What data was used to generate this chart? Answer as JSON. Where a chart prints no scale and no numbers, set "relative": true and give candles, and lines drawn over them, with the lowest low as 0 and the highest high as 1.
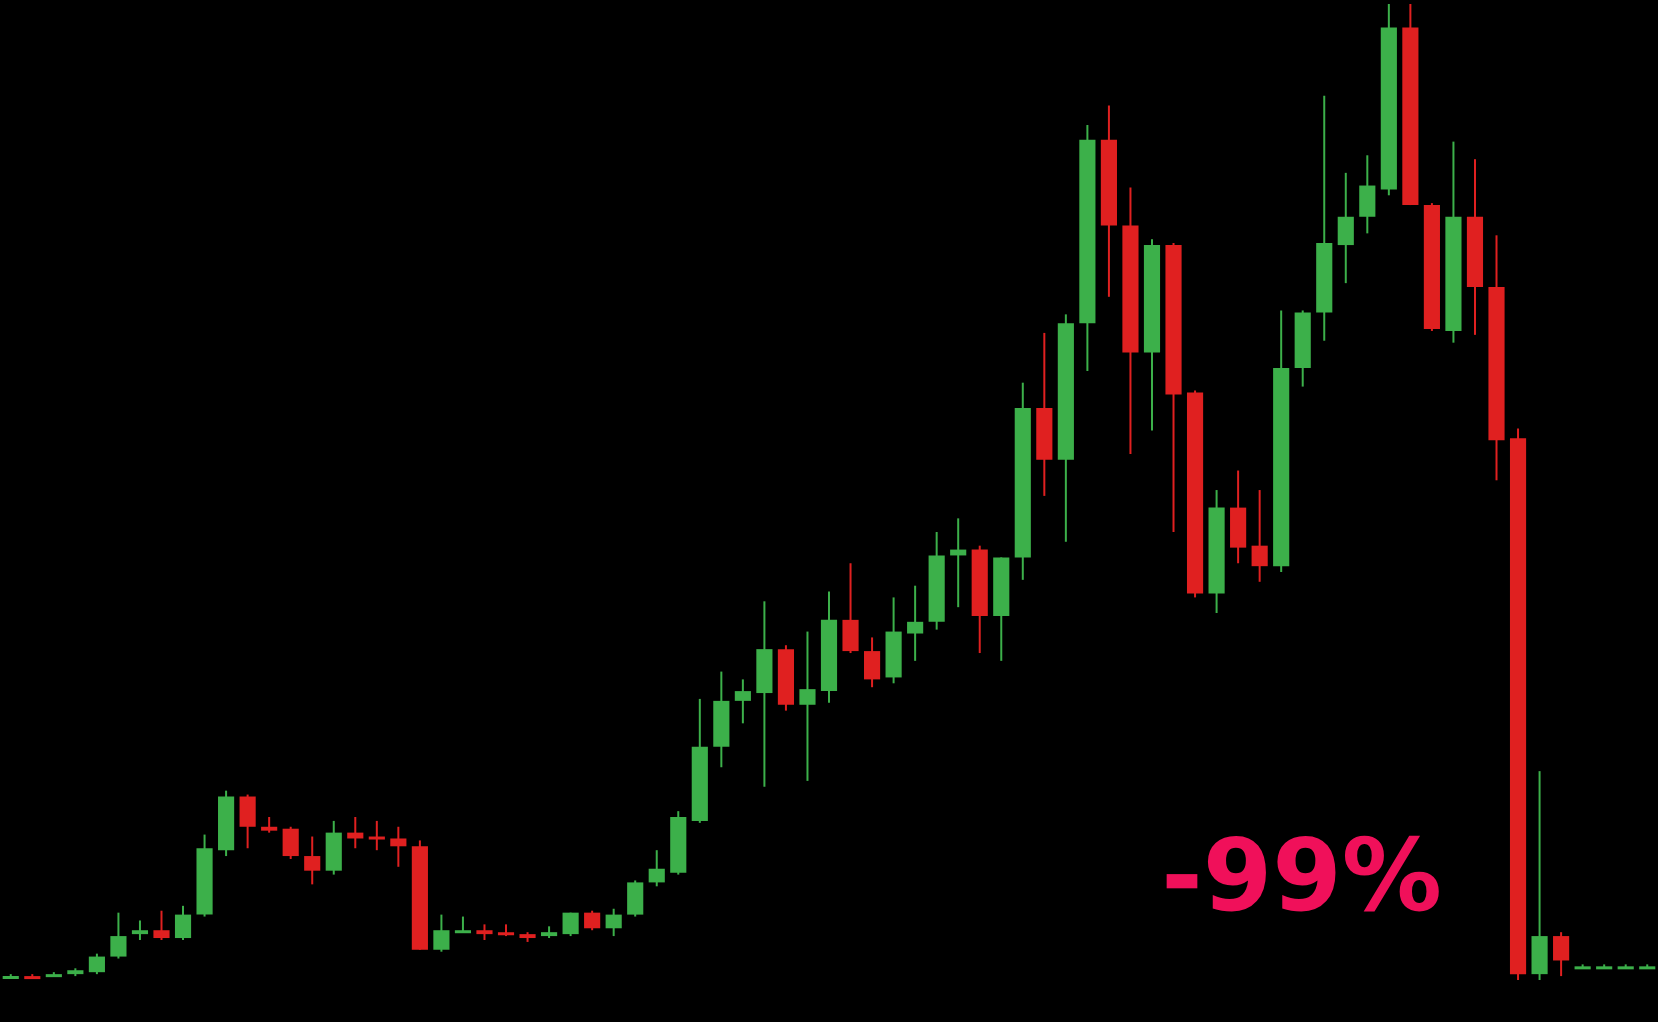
{
  "chart_data": {
    "type": "candlestick",
    "relative": true,
    "annotations": [
      "-99%"
    ],
    "categories": [
      null,
      null,
      null,
      null,
      null,
      null,
      null,
      null,
      null,
      null,
      null,
      null,
      null,
      null,
      null,
      null,
      null,
      null,
      null,
      null,
      null,
      null,
      null,
      null,
      null,
      null,
      null,
      null,
      null,
      null,
      null,
      null,
      null,
      null,
      null,
      null,
      null,
      null,
      null,
      null,
      null,
      null,
      null,
      null,
      null,
      null,
      null,
      null,
      null,
      null,
      null,
      null,
      null,
      null,
      null,
      null,
      null,
      null,
      null,
      null,
      null,
      null,
      null,
      null,
      null,
      null,
      null,
      null,
      null,
      null,
      null,
      null,
      null,
      null,
      null,
      null,
      null
    ],
    "ohlc": [
      [
        0.002,
        0.006,
        0.002,
        0.004
      ],
      [
        0.004,
        0.006,
        0.002,
        0.002
      ],
      [
        0.006,
        0.008,
        0.004,
        0.006
      ],
      [
        0.006,
        0.012,
        0.004,
        0.01
      ],
      [
        0.008,
        0.027,
        0.006,
        0.024
      ],
      [
        0.024,
        0.069,
        0.022,
        0.045
      ],
      [
        0.047,
        0.061,
        0.041,
        0.051
      ],
      [
        0.051,
        0.071,
        0.041,
        0.043
      ],
      [
        0.043,
        0.076,
        0.041,
        0.067
      ],
      [
        0.067,
        0.149,
        0.065,
        0.135
      ],
      [
        0.133,
        0.194,
        0.127,
        0.188
      ],
      [
        0.188,
        0.19,
        0.135,
        0.157
      ],
      [
        0.157,
        0.167,
        0.151,
        0.153
      ],
      [
        0.155,
        0.157,
        0.124,
        0.127
      ],
      [
        0.127,
        0.147,
        0.098,
        0.112
      ],
      [
        0.112,
        0.163,
        0.108,
        0.151
      ],
      [
        0.151,
        0.167,
        0.135,
        0.145
      ],
      [
        0.147,
        0.163,
        0.133,
        0.145
      ],
      [
        0.145,
        0.157,
        0.116,
        0.137
      ],
      [
        0.137,
        0.143,
        0.031,
        0.031
      ],
      [
        0.031,
        0.067,
        0.029,
        0.051
      ],
      [
        0.05,
        0.065,
        0.049,
        0.051
      ],
      [
        0.051,
        0.057,
        0.041,
        0.047
      ],
      [
        0.049,
        0.057,
        0.045,
        0.047
      ],
      [
        0.047,
        0.049,
        0.039,
        0.043
      ],
      [
        0.045,
        0.055,
        0.043,
        0.049
      ],
      [
        0.047,
        0.069,
        0.045,
        0.069
      ],
      [
        0.069,
        0.071,
        0.051,
        0.053
      ],
      [
        0.053,
        0.073,
        0.045,
        0.067
      ],
      [
        0.067,
        0.102,
        0.065,
        0.1
      ],
      [
        0.1,
        0.133,
        0.096,
        0.114
      ],
      [
        0.11,
        0.173,
        0.108,
        0.167
      ],
      [
        0.163,
        0.288,
        0.161,
        0.239
      ],
      [
        0.239,
        0.316,
        0.218,
        0.286
      ],
      [
        0.286,
        0.308,
        0.263,
        0.296
      ],
      [
        0.294,
        0.388,
        0.198,
        0.339
      ],
      [
        0.339,
        0.343,
        0.276,
        0.282
      ],
      [
        0.282,
        0.357,
        0.204,
        0.298
      ],
      [
        0.296,
        0.398,
        0.284,
        0.369
      ],
      [
        0.369,
        0.427,
        0.335,
        0.337
      ],
      [
        0.337,
        0.351,
        0.3,
        0.308
      ],
      [
        0.31,
        0.392,
        0.304,
        0.357
      ],
      [
        0.355,
        0.404,
        0.327,
        0.367
      ],
      [
        0.367,
        0.459,
        0.359,
        0.435
      ],
      [
        0.435,
        0.473,
        0.382,
        0.441
      ],
      [
        0.441,
        0.445,
        0.335,
        0.373
      ],
      [
        0.373,
        0.433,
        0.327,
        0.433
      ],
      [
        0.433,
        0.612,
        0.41,
        0.586
      ],
      [
        0.586,
        0.663,
        0.496,
        0.533
      ],
      [
        0.533,
        0.682,
        0.449,
        0.673
      ],
      [
        0.673,
        0.876,
        0.624,
        0.861
      ],
      [
        0.861,
        0.896,
        0.7,
        0.773
      ],
      [
        0.773,
        0.812,
        0.539,
        0.643
      ],
      [
        0.643,
        0.759,
        0.563,
        0.753
      ],
      [
        0.753,
        0.755,
        0.459,
        0.6
      ],
      [
        0.602,
        0.604,
        0.392,
        0.396
      ],
      [
        0.396,
        0.502,
        0.376,
        0.484
      ],
      [
        0.484,
        0.522,
        0.427,
        0.443
      ],
      [
        0.445,
        0.502,
        0.408,
        0.424
      ],
      [
        0.424,
        0.686,
        0.418,
        0.627
      ],
      [
        0.627,
        0.686,
        0.608,
        0.684
      ],
      [
        0.684,
        0.906,
        0.655,
        0.755
      ],
      [
        0.753,
        0.827,
        0.714,
        0.782
      ],
      [
        0.782,
        0.845,
        0.765,
        0.814
      ],
      [
        0.81,
        1,
        0.804,
        0.976
      ],
      [
        0.976,
        1,
        0.794,
        0.794
      ],
      [
        0.794,
        0.796,
        0.665,
        0.667
      ],
      [
        0.665,
        0.859,
        0.653,
        0.782
      ],
      [
        0.782,
        0.841,
        0.661,
        0.71
      ],
      [
        0.71,
        0.763,
        0.512,
        0.553
      ],
      [
        0.555,
        0.565,
        0,
        0.006
      ],
      [
        0.006,
        0.214,
        0,
        0.045
      ],
      [
        0.045,
        0.049,
        0.004,
        0.02
      ],
      [
        0.014,
        0.016,
        0.012,
        0.014
      ],
      [
        0.014,
        0.016,
        0.012,
        0.014
      ],
      [
        0.014,
        0.016,
        0.012,
        0.014
      ],
      [
        0.014,
        0.016,
        0.012,
        0.014
      ]
    ],
    "colors": [
      "#3cb04a",
      "#e02020",
      "#3cb04a",
      "#3cb04a",
      "#3cb04a",
      "#3cb04a",
      "#3cb04a",
      "#e02020",
      "#3cb04a",
      "#3cb04a",
      "#3cb04a",
      "#e02020",
      "#e02020",
      "#e02020",
      "#e02020",
      "#3cb04a",
      "#e02020",
      "#e02020",
      "#e02020",
      "#e02020",
      "#3cb04a",
      "#3cb04a",
      "#e02020",
      "#e02020",
      "#e02020",
      "#3cb04a",
      "#3cb04a",
      "#e02020",
      "#3cb04a",
      "#3cb04a",
      "#3cb04a",
      "#3cb04a",
      "#3cb04a",
      "#3cb04a",
      "#3cb04a",
      "#3cb04a",
      "#e02020",
      "#3cb04a",
      "#3cb04a",
      "#e02020",
      "#e02020",
      "#3cb04a",
      "#3cb04a",
      "#3cb04a",
      "#3cb04a",
      "#e02020",
      "#3cb04a",
      "#3cb04a",
      "#e02020",
      "#3cb04a",
      "#3cb04a",
      "#e02020",
      "#e02020",
      "#3cb04a",
      "#e02020",
      "#e02020",
      "#3cb04a",
      "#e02020",
      "#e02020",
      "#3cb04a",
      "#3cb04a",
      "#3cb04a",
      "#3cb04a",
      "#3cb04a",
      "#3cb04a",
      "#e02020",
      "#e02020",
      "#3cb04a",
      "#e02020",
      "#e02020",
      "#e02020",
      "#3cb04a",
      "#e02020",
      "#3cb04a",
      "#3cb04a",
      "#3cb04a",
      "#3cb04a"
    ]
  }
}
